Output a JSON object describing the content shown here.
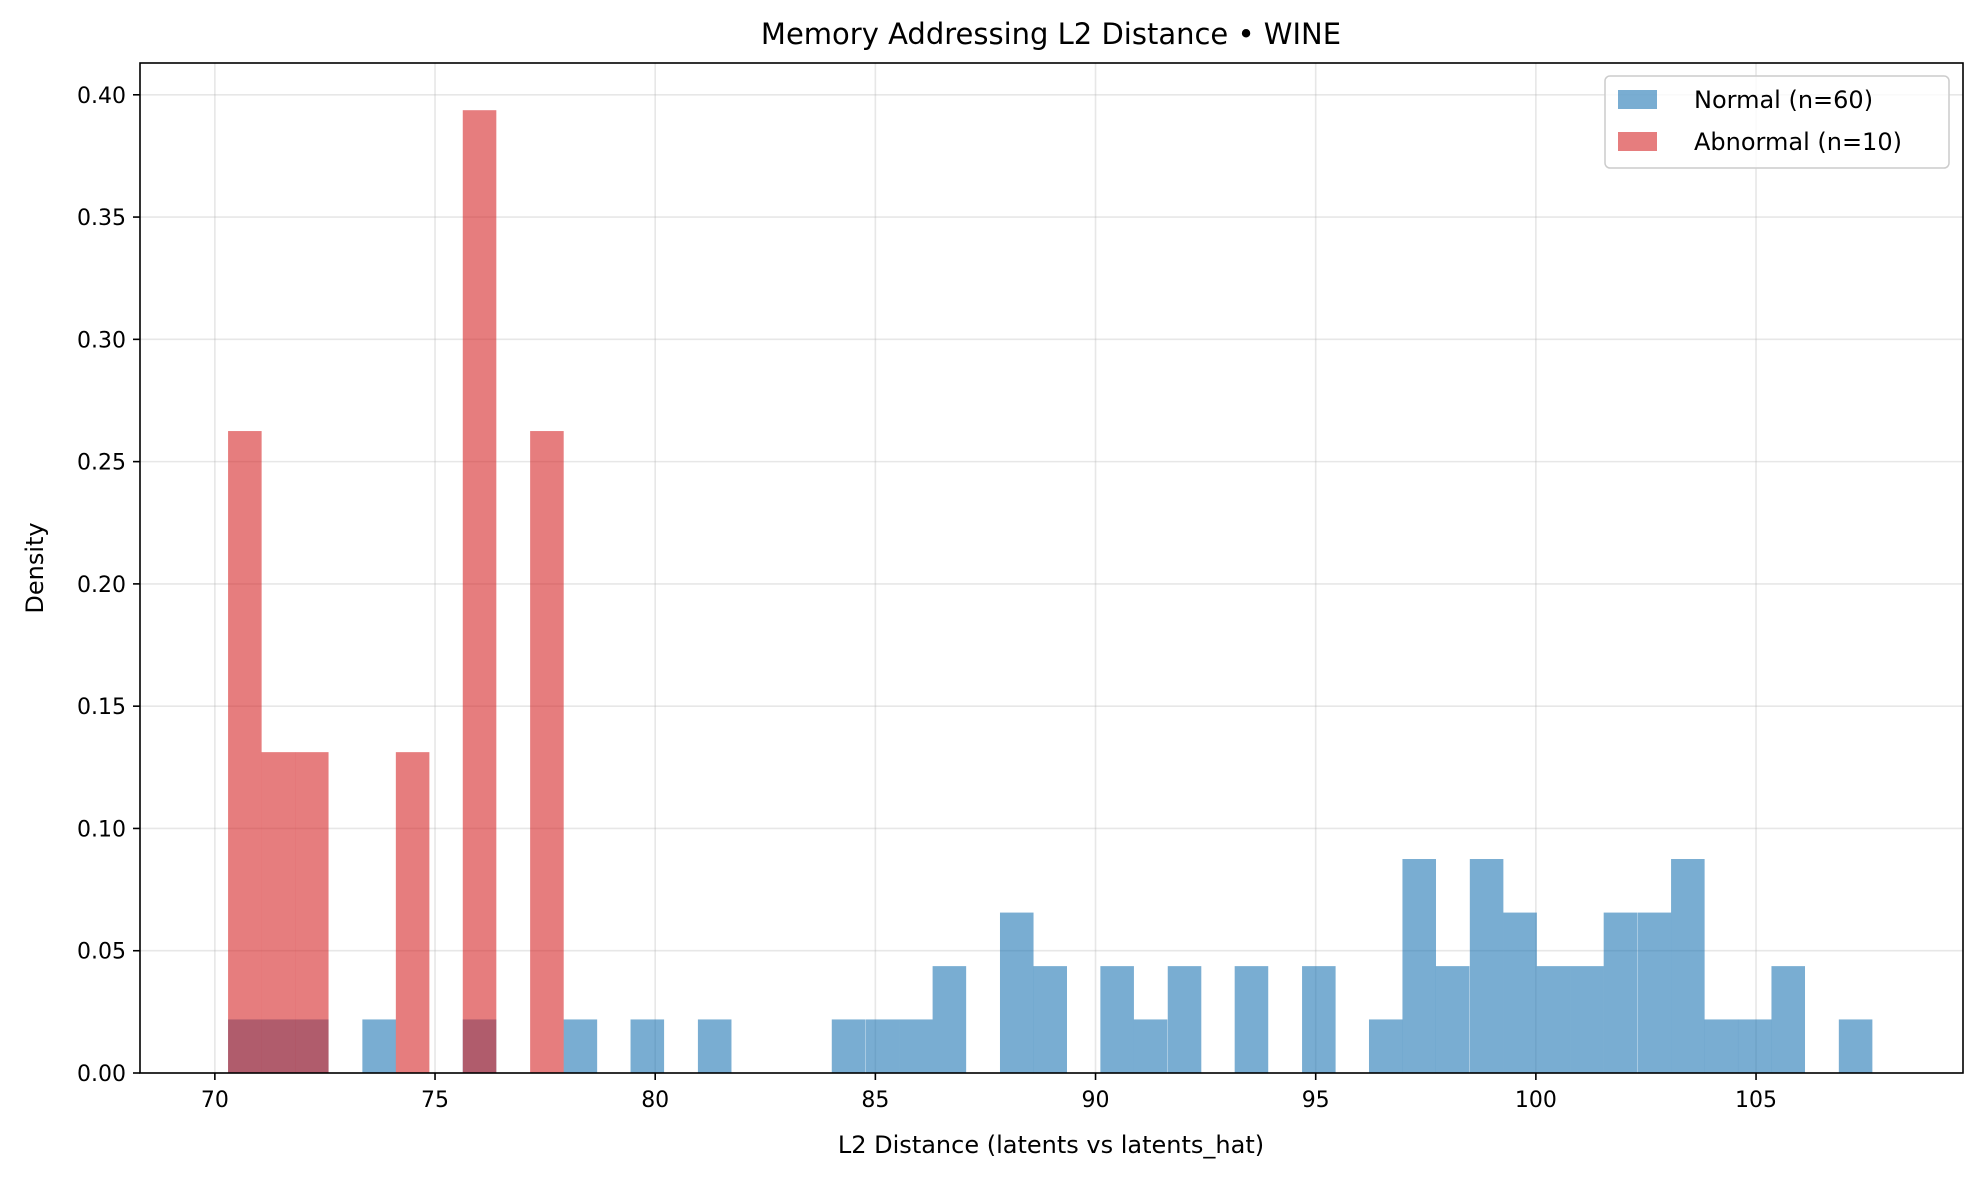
{
  "chart_data": {
    "type": "bar",
    "title": "Memory Addressing L2 Distance • WINE",
    "xlabel": "L2 Distance (latents vs latents_hat)",
    "ylabel": "Density",
    "xlim": [
      68.3,
      109.7
    ],
    "ylim": [
      0,
      0.413
    ],
    "xticks": [
      "70",
      "75",
      "80",
      "85",
      "90",
      "95",
      "100",
      "105"
    ],
    "yticks": [
      "0.00",
      "0.05",
      "0.10",
      "0.15",
      "0.20",
      "0.25",
      "0.30",
      "0.35",
      "0.40"
    ],
    "grid": true,
    "legend_position": "top-right",
    "bin_width": 0.762,
    "series": [
      {
        "name": "Normal (n=60)",
        "color": "#1f77b4",
        "opacity": 0.6,
        "bins": [
          {
            "x0": 70.3,
            "y": 0.0219
          },
          {
            "x0": 71.06,
            "y": 0.0219
          },
          {
            "x0": 71.82,
            "y": 0.0219
          },
          {
            "x0": 73.35,
            "y": 0.0219
          },
          {
            "x0": 75.63,
            "y": 0.0219
          },
          {
            "x0": 77.92,
            "y": 0.0219
          },
          {
            "x0": 79.44,
            "y": 0.0219
          },
          {
            "x0": 80.97,
            "y": 0.0219
          },
          {
            "x0": 84.01,
            "y": 0.0219
          },
          {
            "x0": 84.78,
            "y": 0.0219
          },
          {
            "x0": 85.54,
            "y": 0.0219
          },
          {
            "x0": 86.3,
            "y": 0.0437
          },
          {
            "x0": 87.83,
            "y": 0.0656
          },
          {
            "x0": 88.59,
            "y": 0.0437
          },
          {
            "x0": 90.11,
            "y": 0.0437
          },
          {
            "x0": 90.87,
            "y": 0.0219
          },
          {
            "x0": 91.64,
            "y": 0.0437
          },
          {
            "x0": 93.16,
            "y": 0.0437
          },
          {
            "x0": 94.69,
            "y": 0.0437
          },
          {
            "x0": 96.21,
            "y": 0.0219
          },
          {
            "x0": 96.97,
            "y": 0.0875
          },
          {
            "x0": 97.73,
            "y": 0.0437
          },
          {
            "x0": 98.5,
            "y": 0.0875
          },
          {
            "x0": 99.26,
            "y": 0.0656
          },
          {
            "x0": 100.02,
            "y": 0.0437
          },
          {
            "x0": 100.78,
            "y": 0.0437
          },
          {
            "x0": 101.54,
            "y": 0.0656
          },
          {
            "x0": 102.31,
            "y": 0.0656
          },
          {
            "x0": 103.07,
            "y": 0.0875
          },
          {
            "x0": 103.83,
            "y": 0.0219
          },
          {
            "x0": 104.59,
            "y": 0.0219
          },
          {
            "x0": 105.35,
            "y": 0.0437
          },
          {
            "x0": 106.88,
            "y": 0.0219
          }
        ]
      },
      {
        "name": "Abnormal (n=10)",
        "color": "#d62728",
        "opacity": 0.6,
        "bins": [
          {
            "x0": 70.3,
            "y": 0.2625
          },
          {
            "x0": 71.06,
            "y": 0.1312
          },
          {
            "x0": 71.82,
            "y": 0.1312
          },
          {
            "x0": 74.11,
            "y": 0.1312
          },
          {
            "x0": 75.63,
            "y": 0.3937
          },
          {
            "x0": 77.16,
            "y": 0.2625
          }
        ]
      }
    ]
  }
}
